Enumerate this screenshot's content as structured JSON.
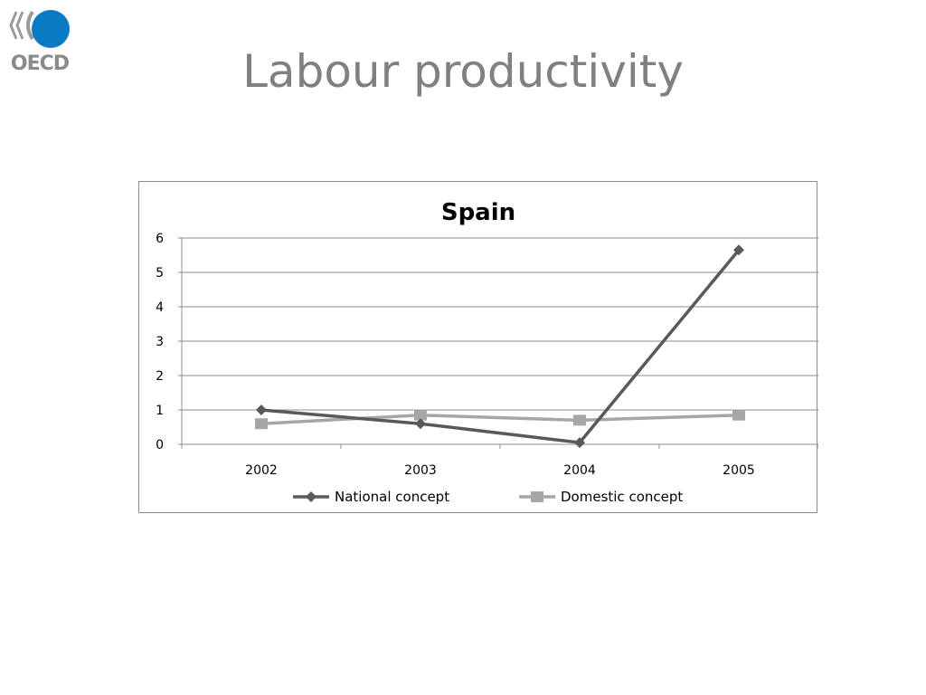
{
  "slide": {
    "title": "Labour productivity",
    "logo_text": "OECD"
  },
  "colors": {
    "logo_blue": "#0a7bc4",
    "logo_grey": "#9a9a9a",
    "title_grey": "#808080",
    "national_series": "#595959",
    "domestic_series": "#a6a6a6",
    "gridline": "#8c8c8c"
  },
  "chart_data": {
    "type": "line",
    "title": "Spain",
    "categories": [
      "2002",
      "2003",
      "2004",
      "2005"
    ],
    "series": [
      {
        "name": "National concept",
        "values": [
          1.0,
          0.6,
          0.05,
          5.65
        ],
        "marker": "diamond"
      },
      {
        "name": "Domestic concept",
        "values": [
          0.6,
          0.85,
          0.7,
          0.85
        ],
        "marker": "square"
      }
    ],
    "ylim": [
      0,
      6
    ],
    "yticks": [
      "0",
      "1",
      "2",
      "3",
      "4",
      "5",
      "6"
    ],
    "grid": true,
    "legend": "bottom",
    "xlabel": "",
    "ylabel": ""
  }
}
